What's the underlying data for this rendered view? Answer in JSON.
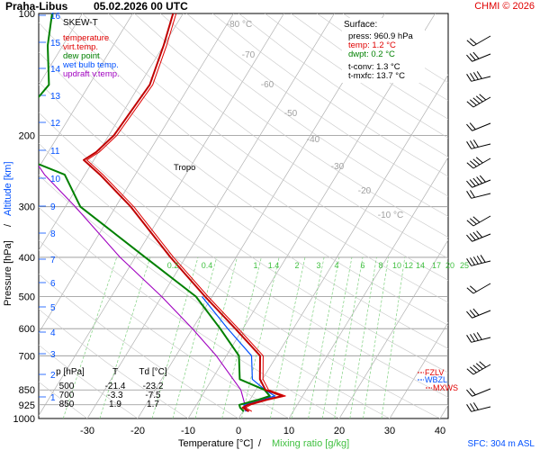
{
  "header": {
    "station": "Praha-Libus",
    "datetime": "05.02.2026 00 UTC",
    "credit": "CHMI © 2026"
  },
  "chart_data": {
    "type": "skew-t",
    "title": "SKEW-T",
    "xlabel": "Temperature [°C]",
    "xlabel_separator": "/",
    "xlabel2": "Mixing ratio [g/kg]",
    "ylabel": "Pressure [hPa]",
    "ylabel_separator": "/",
    "ylabel2": "Altitude [km]",
    "legend": [
      {
        "label": "temperature",
        "color": "#e00000"
      },
      {
        "label": "virt.temp.",
        "color": "#e00000"
      },
      {
        "label": "dew point",
        "color": "#008000"
      },
      {
        "label": "wet bulb temp.",
        "color": "#0050ff"
      },
      {
        "label": "updraft v.temp.",
        "color": "#a000c0"
      }
    ],
    "pressure_ticks": [
      100,
      200,
      300,
      400,
      500,
      600,
      700,
      850,
      925,
      1000
    ],
    "temperature_ticks": [
      -30,
      -20,
      -10,
      0,
      10,
      20,
      30,
      40
    ],
    "altitude_ticks": [
      1,
      2,
      3,
      4,
      5,
      6,
      7,
      8,
      9,
      10,
      11,
      12,
      13,
      14,
      15,
      16
    ],
    "isotherm_labels": [
      "-80 °C",
      "-70",
      "-60",
      "-50",
      "-40",
      "-30",
      "-20",
      "-10 °C"
    ],
    "mixing_ratio_labels": [
      "0.2",
      "0.4",
      "1",
      "1.4",
      "2",
      "3",
      "4",
      "6",
      "8",
      "10",
      "12",
      "14",
      "17",
      "20",
      "25"
    ],
    "surface": {
      "heading": "Surface:",
      "lines": [
        "press: 960.9 hPa",
        "temp: 1.2 °C",
        "dwpt: 0.2 °C",
        "t-conv: 1.3 °C",
        "t-mxfc: 13.7 °C"
      ]
    },
    "tropopause_label": "Tropo",
    "level_labels": [
      "FZLV",
      "WBZL",
      "MXWS"
    ],
    "table": {
      "headers": [
        "p [hPa]",
        "T",
        "Td [°C]"
      ],
      "rows": [
        [
          "500",
          "-21.4",
          "-23.2"
        ],
        [
          "700",
          "-3.3",
          "-7.5"
        ],
        [
          "850",
          "1.9",
          "1.7"
        ]
      ]
    },
    "sfc_label": "SFC: 304 m ASL",
    "temperature_profile": [
      [
        961,
        1.2
      ],
      [
        940,
        -0.5
      ],
      [
        925,
        0.2
      ],
      [
        900,
        3.0
      ],
      [
        880,
        6.0
      ],
      [
        850,
        1.9
      ],
      [
        800,
        -0.5
      ],
      [
        700,
        -3.3
      ],
      [
        600,
        -11.5
      ],
      [
        500,
        -21.4
      ],
      [
        400,
        -33.0
      ],
      [
        300,
        -47.0
      ],
      [
        250,
        -57.0
      ],
      [
        230,
        -62.0
      ],
      [
        220,
        -60.5
      ],
      [
        200,
        -59.0
      ],
      [
        150,
        -58.0
      ],
      [
        120,
        -60.0
      ],
      [
        100,
        -62.0
      ]
    ],
    "dewpoint_profile": [
      [
        961,
        0.2
      ],
      [
        940,
        -1.0
      ],
      [
        925,
        -1.5
      ],
      [
        900,
        1.5
      ],
      [
        880,
        3.5
      ],
      [
        850,
        1.7
      ],
      [
        800,
        -4.5
      ],
      [
        700,
        -7.5
      ],
      [
        600,
        -14.5
      ],
      [
        500,
        -23.2
      ],
      [
        400,
        -38.0
      ],
      [
        300,
        -57.0
      ],
      [
        250,
        -64.0
      ],
      [
        230,
        -73.0
      ],
      [
        200,
        -79.0
      ],
      [
        170,
        -79.0
      ],
      [
        150,
        -78.0
      ],
      [
        120,
        -83.0
      ],
      [
        100,
        -86.0
      ]
    ],
    "wetbulb_profile": [
      [
        961,
        0.6
      ],
      [
        925,
        -0.6
      ],
      [
        900,
        2.0
      ],
      [
        880,
        4.5
      ],
      [
        850,
        1.8
      ],
      [
        800,
        -2.0
      ],
      [
        700,
        -5.0
      ],
      [
        600,
        -13.0
      ],
      [
        500,
        -22.0
      ]
    ],
    "updraft_profile": [
      [
        961,
        0.8
      ],
      [
        850,
        -3.0
      ],
      [
        700,
        -12.0
      ],
      [
        600,
        -20.0
      ],
      [
        500,
        -30.0
      ],
      [
        400,
        -43.0
      ],
      [
        300,
        -58.0
      ],
      [
        250,
        -68.0
      ],
      [
        200,
        -78.0
      ],
      [
        150,
        -90.0
      ]
    ]
  }
}
